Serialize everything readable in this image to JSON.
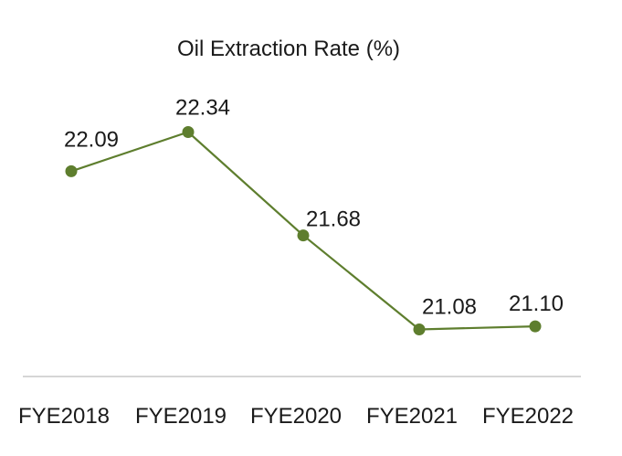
{
  "colors": {
    "line": "#5e7e2e",
    "marker": "#5e7e2e",
    "axis": "#c8c8c8",
    "text": "#1a1a1a",
    "background": "#ffffff"
  },
  "chart_data": {
    "type": "line",
    "title": "Oil Extraction Rate (%)",
    "xlabel": "",
    "ylabel": "",
    "categories": [
      "FYE2018",
      "FYE2019",
      "FYE2020",
      "FYE2021",
      "FYE2022"
    ],
    "series": [
      {
        "values": [
          22.09,
          22.34,
          21.68,
          21.08,
          21.1
        ],
        "labels": [
          "22.09",
          "22.34",
          "21.68",
          "21.08",
          "21.10"
        ]
      }
    ],
    "ylim": [
      20.5,
      22.6
    ],
    "grid": false,
    "legend": "none"
  }
}
